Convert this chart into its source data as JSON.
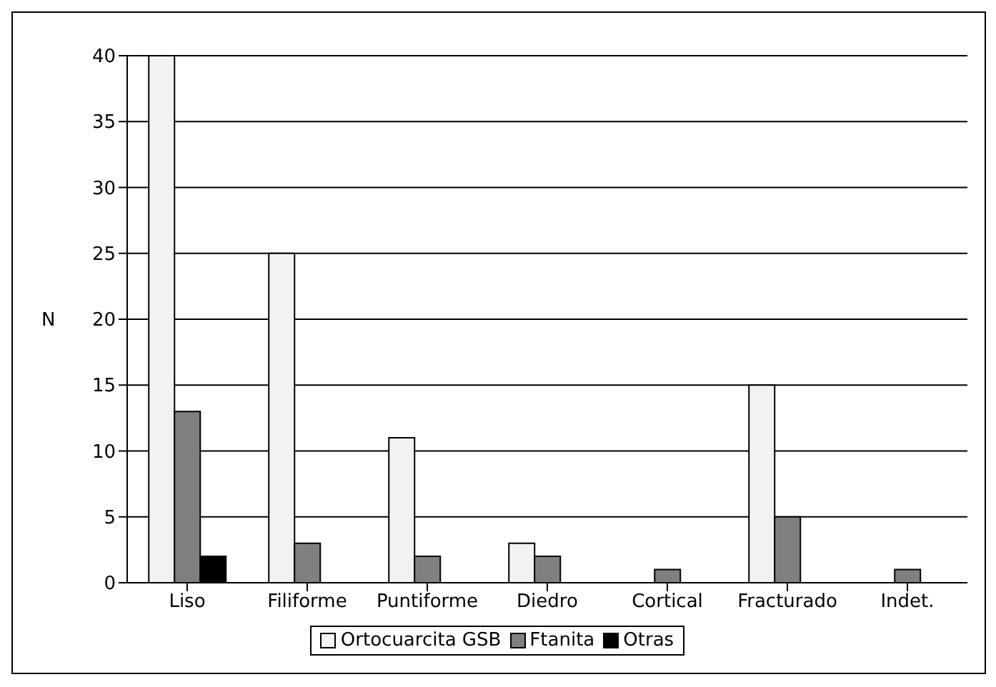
{
  "chart_data": {
    "type": "bar",
    "ylabel": "N",
    "categories": [
      "Liso",
      "Filiforme",
      "Puntiforme",
      "Diedro",
      "Cortical",
      "Fracturado",
      "Indet."
    ],
    "series": [
      {
        "name": "Ortocuarcita GSB",
        "color": "#f2f2f2",
        "values": [
          40,
          25,
          11,
          3,
          0,
          15,
          0
        ]
      },
      {
        "name": "Ftanita",
        "color": "#808080",
        "values": [
          13,
          3,
          2,
          2,
          1,
          5,
          1
        ]
      },
      {
        "name": "Otras",
        "color": "#000000",
        "values": [
          2,
          0,
          0,
          0,
          0,
          0,
          0
        ]
      }
    ],
    "ylim": [
      0,
      40
    ],
    "yticks": [
      0,
      5,
      10,
      15,
      20,
      25,
      30,
      35,
      40
    ],
    "grid": "y",
    "legend": "bottom"
  }
}
